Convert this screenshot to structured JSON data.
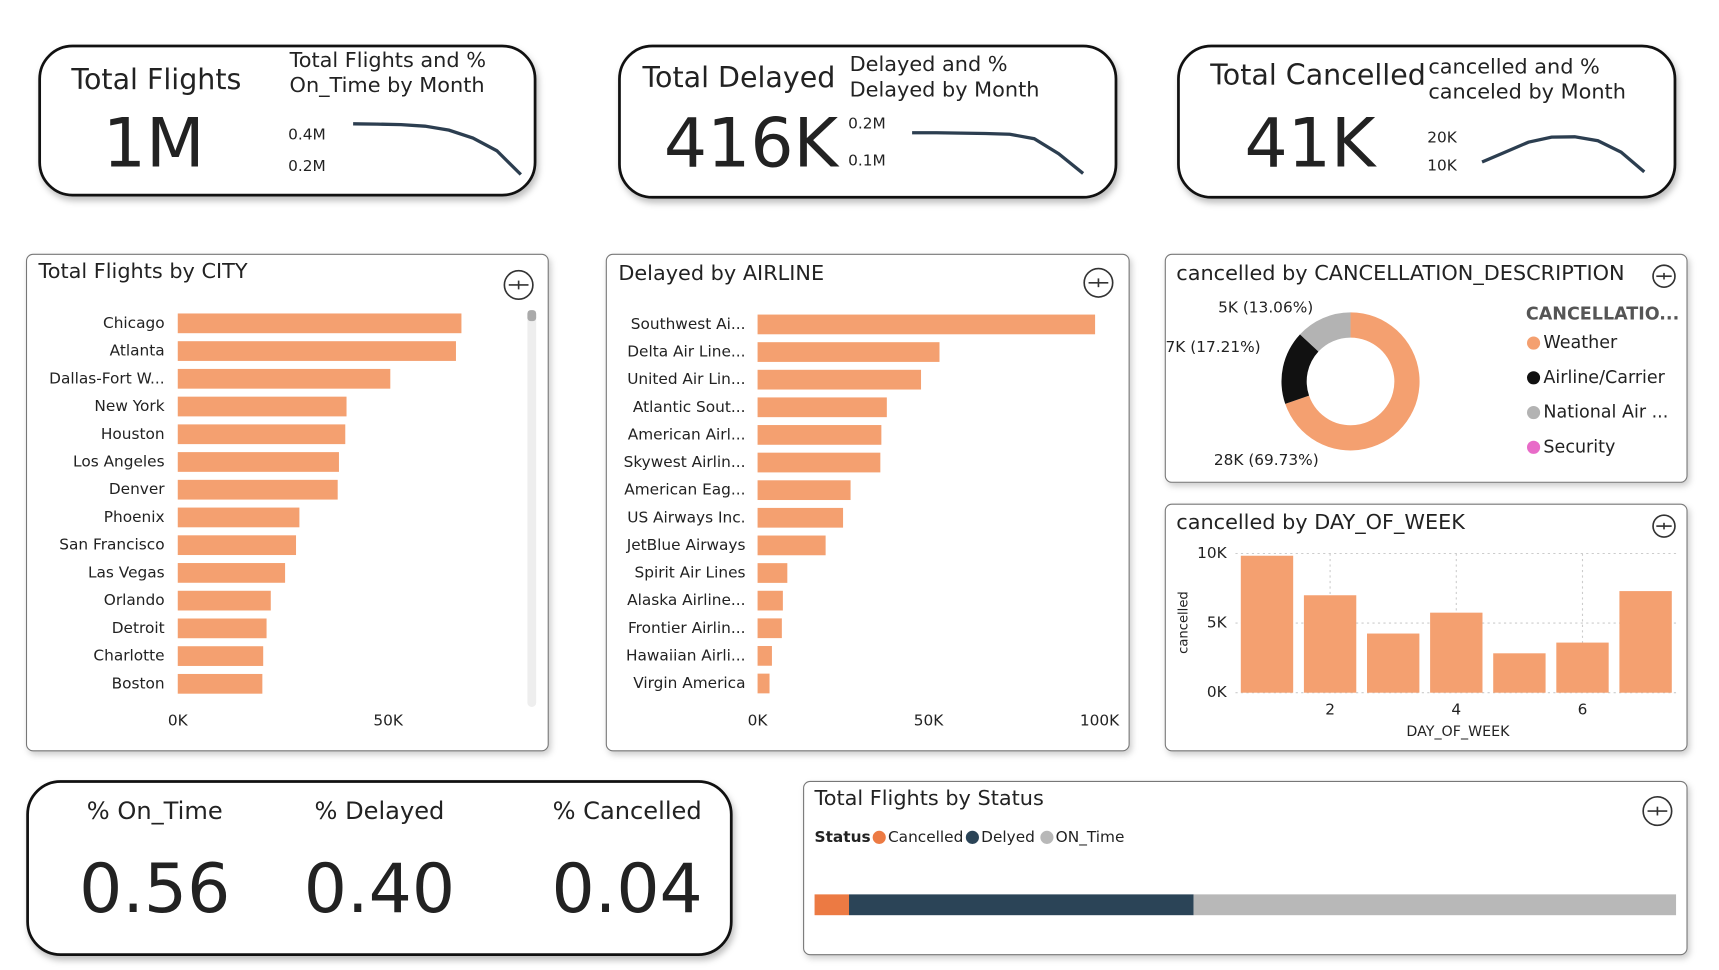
{
  "cards": [
    {
      "title": "Total Flights",
      "value": "1M"
    },
    {
      "title": "Total Delayed",
      "value": "416K"
    },
    {
      "title": "Total Cancelled",
      "value": "41K"
    }
  ],
  "chart_data": [
    {
      "type": "line",
      "title": "Total Flights and % On_Time by Month",
      "values": [
        470000,
        468000,
        465000,
        455000,
        430000,
        380000,
        300000,
        150000
      ],
      "ylim": [
        110000,
        525000
      ],
      "yticks": [
        {
          "value": 400000,
          "label": "0.4M"
        },
        {
          "value": 200000,
          "label": "0.2M"
        }
      ],
      "color": "#2c3e50"
    },
    {
      "type": "line",
      "title": "Delayed and % Delayed by Month",
      "values": [
        176000,
        176000,
        175000,
        174000,
        172000,
        160000,
        120000,
        67000
      ],
      "ylim": [
        56000,
        238000
      ],
      "yticks": [
        {
          "value": 200000,
          "label": "0.2M"
        },
        {
          "value": 100000,
          "label": "0.1M"
        }
      ],
      "color": "#2c3e50"
    },
    {
      "type": "line",
      "title": "cancelled and % canceled by Month",
      "values": [
        11500,
        15000,
        18500,
        20300,
        20400,
        19000,
        15000,
        8000
      ],
      "ylim": [
        6000,
        24200
      ],
      "yticks": [
        {
          "value": 20000,
          "label": "20K"
        },
        {
          "value": 10000,
          "label": "10K"
        }
      ],
      "color": "#2c3e50"
    },
    {
      "type": "hbar",
      "title": "Total Flights by CITY",
      "categories": [
        "Chicago",
        "Atlanta",
        "Dallas-Fort W...",
        "New York",
        "Houston",
        "Los Angeles",
        "Denver",
        "Phoenix",
        "San Francisco",
        "Las Vegas",
        "Orlando",
        "Detroit",
        "Charlotte",
        "Boston"
      ],
      "values": [
        67400,
        66100,
        50500,
        40100,
        39800,
        38300,
        38000,
        28900,
        28100,
        25500,
        22100,
        21100,
        20300,
        20100
      ],
      "xlim": [
        0,
        75000
      ],
      "xticks": [
        {
          "value": 0,
          "label": "0K"
        },
        {
          "value": 50000,
          "label": "50K"
        }
      ],
      "color": "#f4a070"
    },
    {
      "type": "hbar",
      "title": "Delayed by AIRLINE",
      "categories": [
        "Southwest Ai...",
        "Delta Air Line...",
        "United Air Lin...",
        "Atlantic Sout...",
        "American Airl...",
        "Skywest Airlin...",
        "American Eag...",
        "US Airways Inc.",
        "JetBlue Airways",
        "Spirit Air Lines",
        "Alaska Airline...",
        "Frontier Airlin...",
        "Hawaiian Airli...",
        "Virgin America"
      ],
      "values": [
        98700,
        53200,
        47800,
        37800,
        36200,
        35900,
        27200,
        25000,
        19900,
        8700,
        7400,
        7100,
        4200,
        3500
      ],
      "xlim": [
        0,
        100000
      ],
      "xticks": [
        {
          "value": 0,
          "label": "0K"
        },
        {
          "value": 50000,
          "label": "50K"
        },
        {
          "value": 100000,
          "label": "100K"
        }
      ],
      "color": "#f4a070"
    },
    {
      "type": "donut",
      "title": "cancelled by CANCELLATION_DESCRIPTION",
      "legend_title": "CANCELLATIO...",
      "categories": [
        "Weather",
        "Airline/Carrier",
        "National Air ...",
        "Security"
      ],
      "values": [
        69.73,
        17.21,
        13.06,
        0
      ],
      "value_labels": [
        "28K (69.73%)",
        "7K (17.21%)",
        "5K (13.06%)",
        null
      ],
      "colors": [
        "#f4a070",
        "#111111",
        "#b3b3b3",
        "#e86bc8"
      ]
    },
    {
      "type": "bar",
      "title": "cancelled by DAY_OF_WEEK",
      "x": [
        1,
        2,
        3,
        4,
        5,
        6,
        7
      ],
      "values": [
        9840,
        7000,
        4250,
        5750,
        2830,
        3600,
        7300
      ],
      "xlim": [
        0.5,
        7.5
      ],
      "ylim": [
        0,
        10000
      ],
      "xticks": [
        2,
        4,
        6
      ],
      "yticks": [
        {
          "value": 0,
          "label": "0K"
        },
        {
          "value": 5000,
          "label": "5K"
        },
        {
          "value": 10000,
          "label": "10K"
        }
      ],
      "xlabel": "DAY_OF_WEEK",
      "ylabel": "cancelled",
      "grid": true,
      "color": "#f4a070"
    },
    {
      "type": "stacked_bar",
      "title": "Total Flights by Status",
      "legend_title": "Status",
      "xlim": [
        0,
        1
      ],
      "series": [
        {
          "name": "Cancelled",
          "color": "#ec7a43",
          "values": [
            0.04
          ]
        },
        {
          "name": "Delyed",
          "color": "#2b4457",
          "values": [
            0.4
          ]
        },
        {
          "name": "ON_Time",
          "color": "#b8b8b8",
          "values": [
            0.56
          ]
        }
      ]
    }
  ],
  "percentages": [
    {
      "title": "% On_Time",
      "value": "0.56"
    },
    {
      "title": "% Delayed",
      "value": "0.40"
    },
    {
      "title": "% Cancelled",
      "value": "0.04"
    }
  ]
}
